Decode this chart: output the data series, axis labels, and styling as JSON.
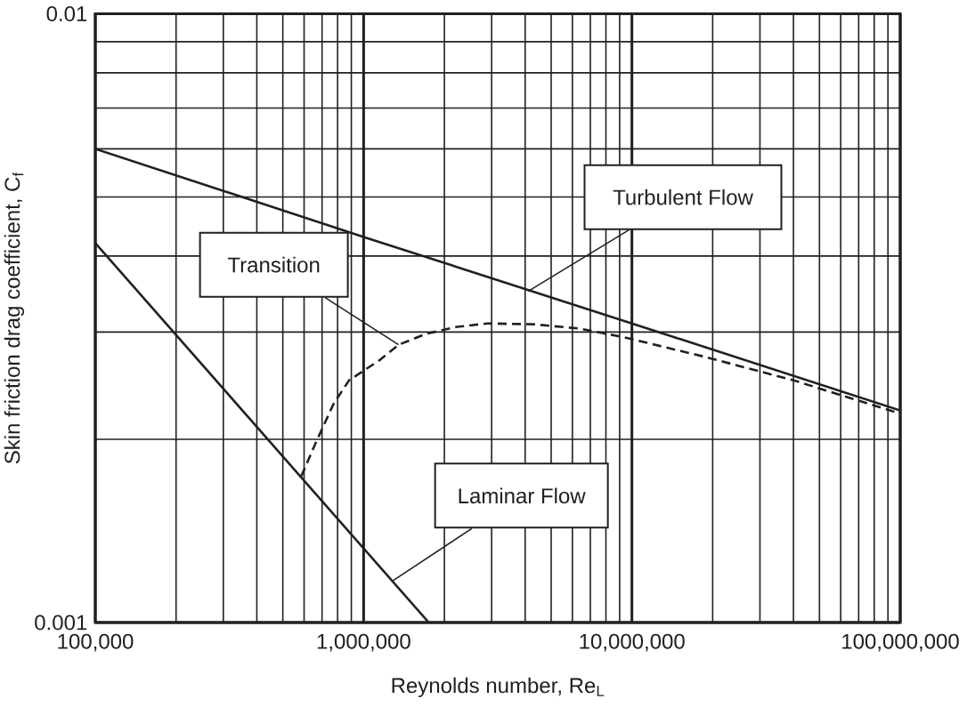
{
  "chart_data": {
    "type": "line",
    "xlabel": "Reynolds number, Re$_{L}$",
    "ylabel": "Skin friction drag coefficient, C$_{f}$",
    "log": "xy",
    "grid": true,
    "xlim": [
      100000,
      100000000
    ],
    "ylim": [
      0.001,
      0.01
    ],
    "xticks": [
      {
        "value": 100000,
        "label": "100,000"
      },
      {
        "value": 1000000,
        "label": "1,000,000"
      },
      {
        "value": 10000000,
        "label": "10,000,000"
      },
      {
        "value": 100000000,
        "label": "100,000,000"
      }
    ],
    "yticks": [
      0.001,
      0.01
    ],
    "series": [
      {
        "color": "#231f20",
        "line_style": "solid",
        "x": [
          100000,
          1000000,
          10000000,
          100000000
        ],
        "values": [
          0.006,
          0.0043,
          0.0031,
          0.00223
        ]
      },
      {
        "color": "#231f20",
        "line_style": "solid",
        "x": [
          100000,
          1750000
        ],
        "values": [
          0.0042,
          0.001
        ]
      },
      {
        "color": "#231f20",
        "line_style": "dashed",
        "x": [
          586000,
          662000,
          774000,
          883000,
          1150000,
          1350000,
          1710000,
          2230000,
          2900000,
          4300000,
          6400000,
          9400000,
          18200000,
          40000000,
          98000000
        ],
        "values": [
          0.00174,
          0.00197,
          0.00229,
          0.0025,
          0.0027,
          0.00286,
          0.00298,
          0.00306,
          0.0031,
          0.00309,
          0.00304,
          0.00294,
          0.00274,
          0.0025,
          0.00221
        ]
      }
    ],
    "annotations": [
      {
        "text": "Turbulent Flow",
        "x": 4100000,
        "y": 0.0035
      },
      {
        "text": "Transition",
        "x": 1350000,
        "y": 0.00286
      },
      {
        "text": "Laminar Flow",
        "x": 1280000,
        "y": 0.00117
      }
    ]
  }
}
